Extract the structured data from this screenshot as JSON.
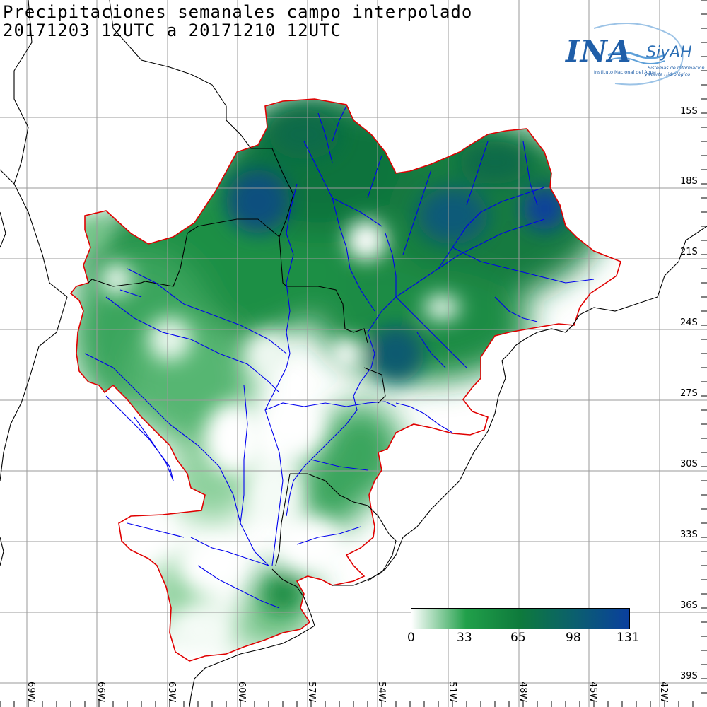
{
  "title": {
    "line1": "Precipitaciones semanales campo interpolado",
    "line2": "20171203 12UTC a 20171210 12UTC"
  },
  "logo": {
    "main": "INA",
    "sub": "SiyAH",
    "line1": "Instituto Nacional del Agua",
    "line2": "Sistemas de Información",
    "line3": "y Alerta Hidrológico",
    "color": "#1f5ea8"
  },
  "lat_labels": [
    "15S",
    "18S",
    "21S",
    "24S",
    "27S",
    "30S",
    "33S",
    "36S",
    "39S"
  ],
  "lon_labels": [
    "69W",
    "66W",
    "63W",
    "60W",
    "57W",
    "54W",
    "51W",
    "48W",
    "45W",
    "42W"
  ],
  "colorbar": {
    "ticks": [
      "0",
      "33",
      "65",
      "98",
      "131"
    ],
    "colors": [
      "#ffffff",
      "#21a04a",
      "#0e7a3c",
      "#0b5f6e",
      "#0a3f9e"
    ]
  },
  "colors": {
    "basin_outline": "#e00000",
    "rivers": "#0000ee",
    "borders": "#000000",
    "grid": "#9a9a9a"
  }
}
